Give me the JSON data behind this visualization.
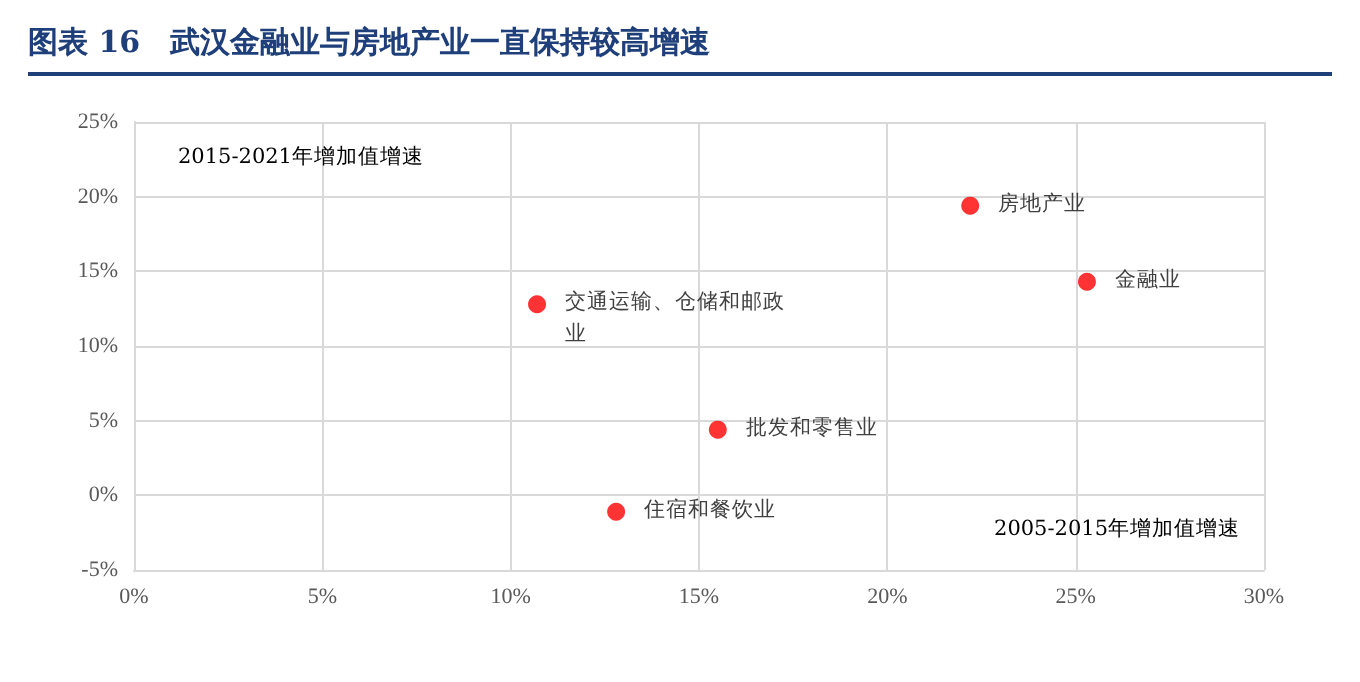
{
  "chart_data": {
    "type": "scatter",
    "title": "图表 16　武汉金融业与房地产业一直保持较高增速",
    "xlabel": "2005-2015年增加值增速",
    "ylabel": "2015-2021年增加值增速",
    "x": [
      10.7,
      22.2,
      25.3,
      15.5,
      12.8
    ],
    "series": [
      {
        "color": "#ff0000",
        "values": [
          12.8,
          19.4,
          14.3,
          4.4,
          -1.1
        ]
      }
    ],
    "annotations": [
      {
        "text": "交通运输、仓储和邮政业",
        "x": 10.7,
        "y": 12.8
      },
      {
        "text": "房地产业",
        "x": 22.2,
        "y": 19.4
      },
      {
        "text": "金融业",
        "x": 25.3,
        "y": 14.3
      },
      {
        "text": "批发和零售业",
        "x": 15.5,
        "y": 4.4
      },
      {
        "text": "住宿和餐饮业",
        "x": 12.8,
        "y": -1.1
      }
    ],
    "xlim": [
      0,
      30
    ],
    "ylim": [
      -5,
      25
    ],
    "xticks": [
      {
        "value": 0,
        "label": "0%"
      },
      {
        "value": 5,
        "label": "5%"
      },
      {
        "value": 10,
        "label": "10%"
      },
      {
        "value": 15,
        "label": "15%"
      },
      {
        "value": 20,
        "label": "20%"
      },
      {
        "value": 25,
        "label": "25%"
      },
      {
        "value": 30,
        "label": "30%"
      }
    ],
    "yticks": [
      {
        "value": -5,
        "label": "-5%"
      },
      {
        "value": 0,
        "label": "0%"
      },
      {
        "value": 5,
        "label": "5%"
      },
      {
        "value": 10,
        "label": "10%"
      },
      {
        "value": 15,
        "label": "15%"
      },
      {
        "value": 20,
        "label": "20%"
      },
      {
        "value": 25,
        "label": "25%"
      }
    ],
    "grid": true,
    "marker": "circle"
  }
}
